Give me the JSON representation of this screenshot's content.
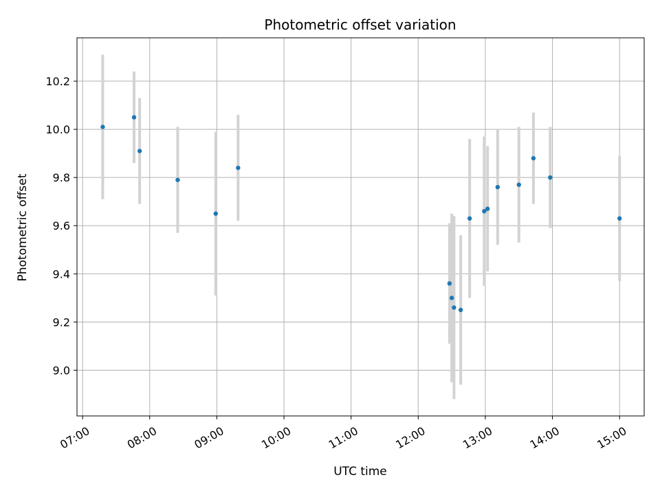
{
  "chart_data": {
    "type": "scatter",
    "title": "Photometric offset variation",
    "xlabel": "UTC time",
    "ylabel": "Photometric offset",
    "xlim": [
      "06:55",
      "15:22"
    ],
    "ylim": [
      8.81,
      10.38
    ],
    "grid": true,
    "x_ticks": [
      "07:00",
      "08:00",
      "09:00",
      "10:00",
      "11:00",
      "12:00",
      "13:00",
      "14:00",
      "15:00"
    ],
    "y_ticks": [
      "9.0",
      "9.2",
      "9.4",
      "9.6",
      "9.8",
      "10.0",
      "10.2"
    ],
    "colors": {
      "points": "#1f77b4",
      "error_bars": "#d3d3d3",
      "grid": "#b0b0b0"
    },
    "series": [
      {
        "points": [
          {
            "x": "07:18",
            "y": 10.01,
            "err": 0.3
          },
          {
            "x": "07:46",
            "y": 10.05,
            "err": 0.19
          },
          {
            "x": "07:51",
            "y": 9.91,
            "err": 0.22
          },
          {
            "x": "08:25",
            "y": 9.79,
            "err": 0.22
          },
          {
            "x": "08:59",
            "y": 9.65,
            "err": 0.34
          },
          {
            "x": "09:19",
            "y": 9.84,
            "err": 0.22
          },
          {
            "x": "12:28",
            "y": 9.36,
            "err": 0.25
          },
          {
            "x": "12:30",
            "y": 9.3,
            "err": 0.35
          },
          {
            "x": "12:32",
            "y": 9.26,
            "err": 0.38
          },
          {
            "x": "12:38",
            "y": 9.25,
            "err": 0.31
          },
          {
            "x": "12:46",
            "y": 9.63,
            "err": 0.33
          },
          {
            "x": "12:59",
            "y": 9.66,
            "err": 0.31
          },
          {
            "x": "13:02",
            "y": 9.67,
            "err": 0.26
          },
          {
            "x": "13:11",
            "y": 9.76,
            "err": 0.24
          },
          {
            "x": "13:30",
            "y": 9.77,
            "err": 0.24
          },
          {
            "x": "13:43",
            "y": 9.88,
            "err": 0.19
          },
          {
            "x": "13:58",
            "y": 9.8,
            "err": 0.21
          },
          {
            "x": "15:00",
            "y": 9.63,
            "err": 0.26
          }
        ]
      }
    ]
  }
}
